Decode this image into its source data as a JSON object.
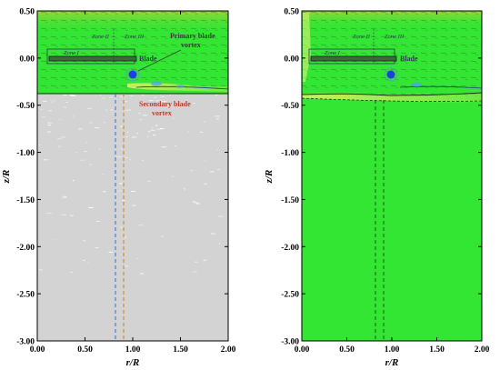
{
  "figure": {
    "panels": [
      {
        "id": "left",
        "xlabel": "r/R",
        "ylabel": "z/R",
        "x_ticks": [
          "0.00",
          "0.50",
          "1.00",
          "1.50",
          "2.00"
        ],
        "y_ticks": [
          "0.50",
          "0.00",
          "-0.50",
          "-1.00",
          "-1.50",
          "-2.00",
          "-2.50",
          "-3.00"
        ],
        "zone_labels": [
          "Zone I",
          "Zone II",
          "Zone III"
        ],
        "blade_label": "Blade",
        "annotation_primary_1": "Primary blade",
        "annotation_primary_2": "vortex",
        "annotation_secondary_1": "Secondary blade",
        "annotation_secondary_2": "vortex"
      },
      {
        "id": "right",
        "xlabel": "r/R",
        "ylabel": "z/R",
        "x_ticks": [
          "0.00",
          "0.50",
          "1.00",
          "1.50",
          "2.00"
        ],
        "y_ticks": [
          "0.50",
          "0.00",
          "-0.50",
          "-1.00",
          "-1.50",
          "-2.00",
          "-2.50",
          "-3.00"
        ],
        "zone_labels": [
          "Zone I",
          "Zone II",
          "Zone III"
        ],
        "blade_label": "Blade"
      }
    ],
    "colors": {
      "field_green": "#33e633",
      "masked_gray": "#d3d3d3",
      "vortex_blue": "#1f3fe0",
      "axis": "#000000",
      "line_blue": "#2c6fd1",
      "line_orange": "#c87b2a"
    }
  }
}
